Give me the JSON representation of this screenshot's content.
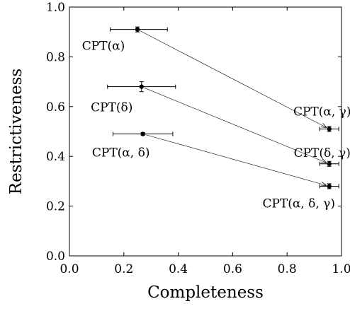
{
  "chart_data": {
    "type": "scatter",
    "title": "",
    "xlabel": "Completeness",
    "ylabel": "Restrictiveness",
    "xlim": [
      0.0,
      1.0
    ],
    "ylim": [
      0.0,
      1.0
    ],
    "xticks": [
      "0.0",
      "0.2",
      "0.4",
      "0.6",
      "0.8",
      "1.0"
    ],
    "yticks": [
      "0.0",
      "0.2",
      "0.4",
      "0.6",
      "0.8",
      "1.0"
    ],
    "grid": false,
    "points": [
      {
        "label": "CPT(α)",
        "x": 0.25,
        "y": 0.91,
        "x_err": [
          0.15,
          0.36
        ],
        "y_err": [
          0.9,
          0.92
        ]
      },
      {
        "label": "CPT(δ)",
        "x": 0.265,
        "y": 0.68,
        "x_err": [
          0.14,
          0.39
        ],
        "y_err": [
          0.66,
          0.7
        ]
      },
      {
        "label": "CPT(α, δ)",
        "x": 0.27,
        "y": 0.49,
        "x_err": [
          0.16,
          0.38
        ],
        "y_err": [
          0.485,
          0.495
        ]
      },
      {
        "label": "CPT(α, γ)",
        "x": 0.955,
        "y": 0.51,
        "x_err": [
          0.92,
          0.99
        ],
        "y_err": [
          0.5,
          0.52
        ]
      },
      {
        "label": "CPT(δ, γ)",
        "x": 0.955,
        "y": 0.37,
        "x_err": [
          0.92,
          0.99
        ],
        "y_err": [
          0.36,
          0.38
        ]
      },
      {
        "label": "CPT(α, δ, γ)",
        "x": 0.955,
        "y": 0.28,
        "x_err": [
          0.92,
          0.99
        ],
        "y_err": [
          0.27,
          0.29
        ]
      }
    ],
    "arrows": [
      {
        "from": "CPT(α)",
        "to": "CPT(α, γ)"
      },
      {
        "from": "CPT(δ)",
        "to": "CPT(δ, γ)"
      },
      {
        "from": "CPT(α, δ)",
        "to": "CPT(α, δ, γ)"
      }
    ]
  }
}
